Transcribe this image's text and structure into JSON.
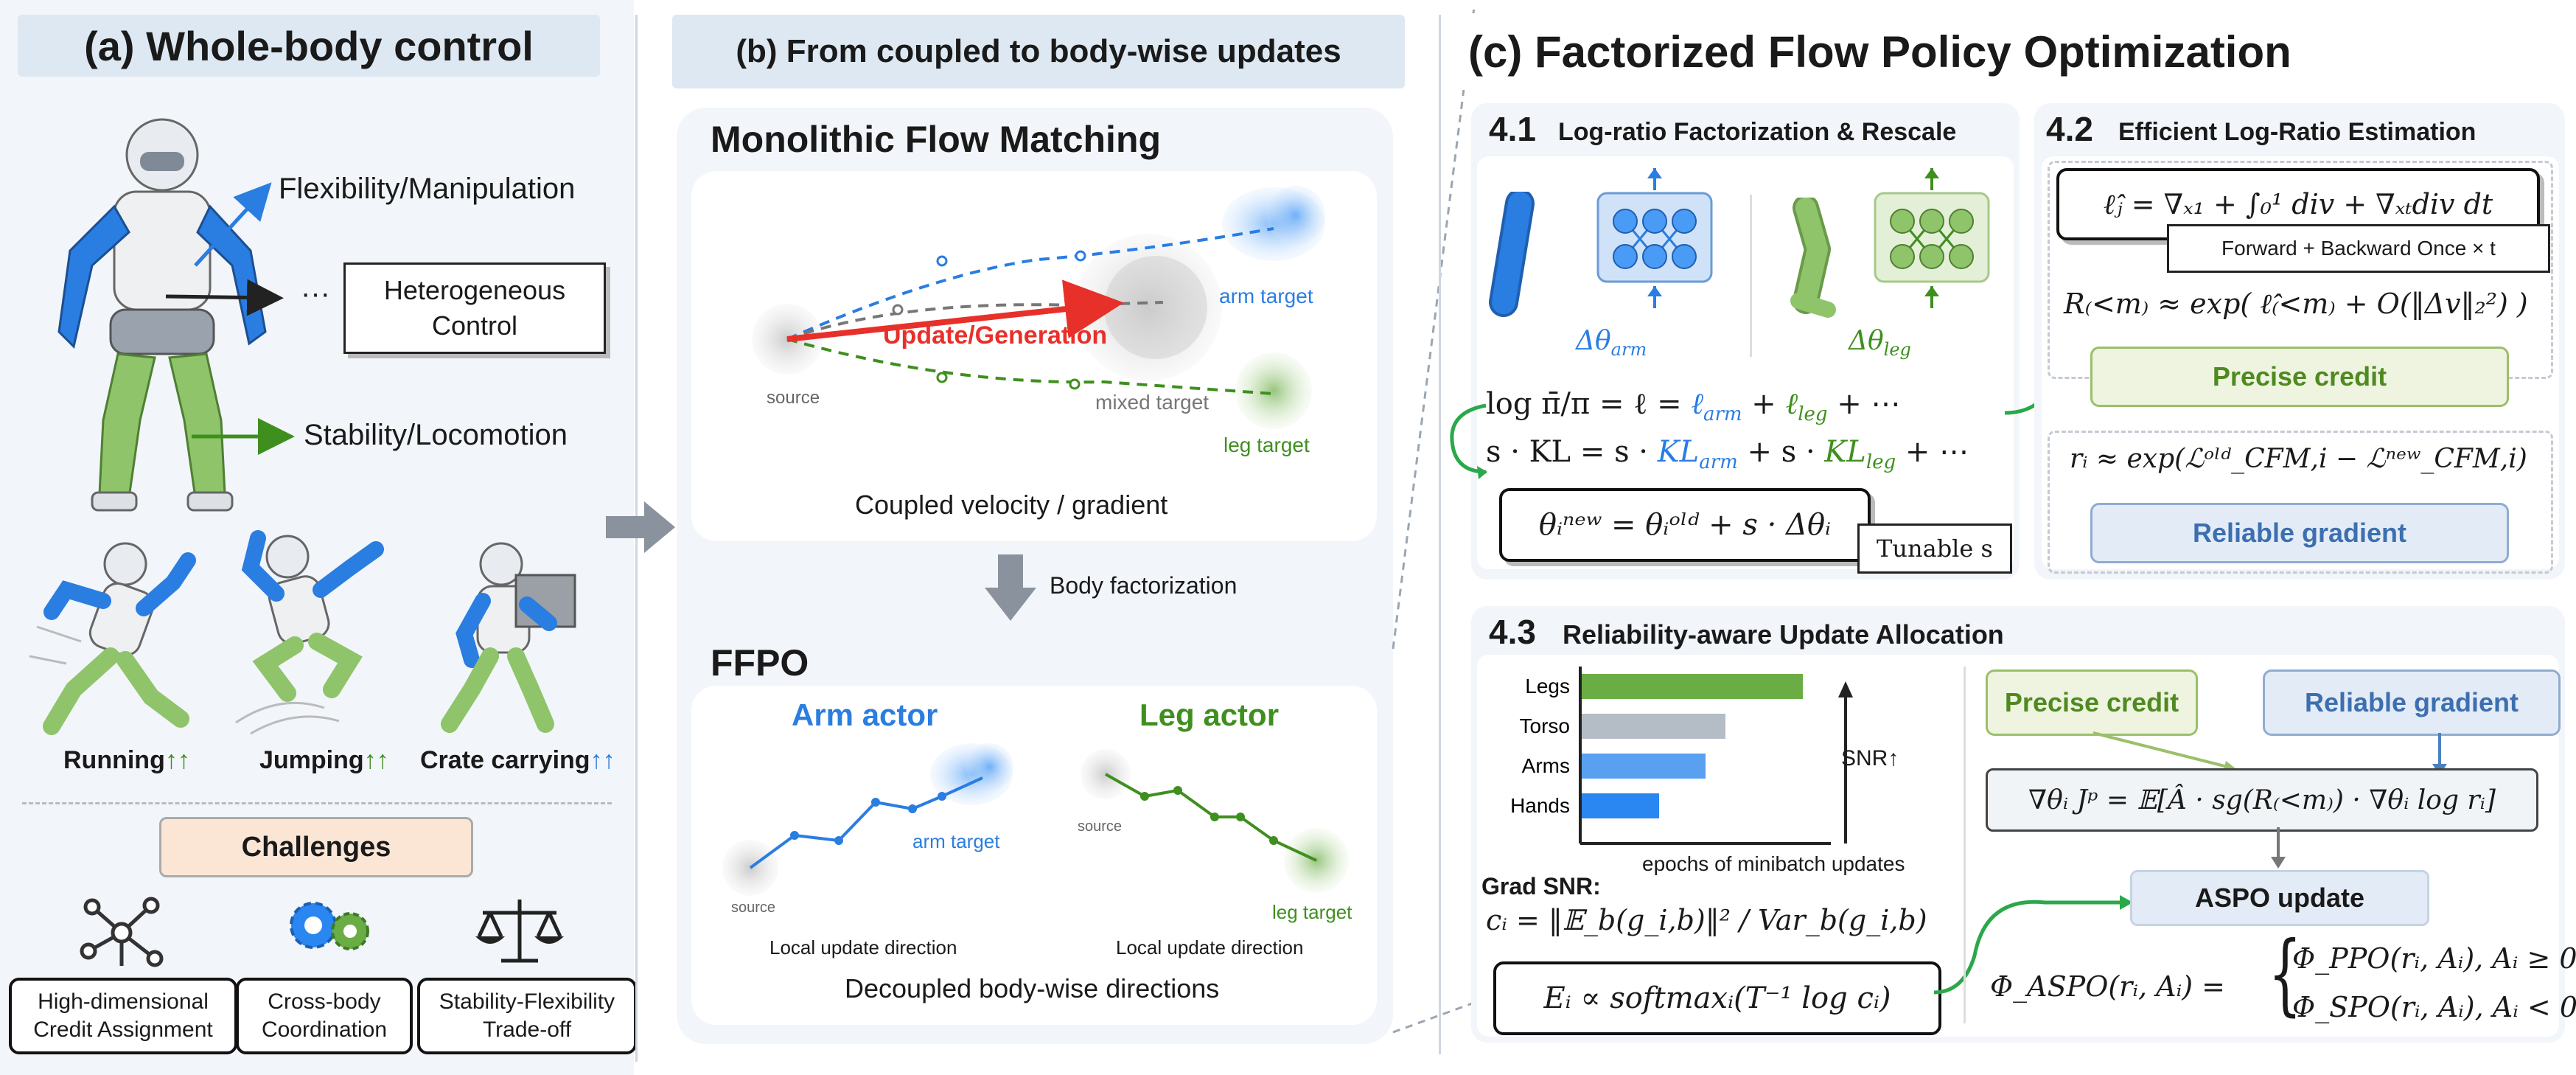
{
  "panel_a": {
    "title": "(a) Whole-body control",
    "labels": {
      "flex": "Flexibility/Manipulation",
      "ellipsis": "···",
      "hetero": "Heterogeneous Control",
      "stab": "Stability/Locomotion"
    },
    "actions": [
      {
        "label": "Running",
        "arrows": "↑↑"
      },
      {
        "label": "Jumping",
        "arrows": "↑↑"
      },
      {
        "label": "Crate carrying",
        "arrows": "↑↑"
      }
    ],
    "challenges_title": "Challenges",
    "challenges": [
      "High-dimensional Credit Assignment",
      "Cross-body Coordination",
      "Stability-Flexibility Trade-off"
    ]
  },
  "panel_b": {
    "title": "(b) From coupled to body-wise updates",
    "mono_title": "Monolithic Flow Matching",
    "mono": {
      "arm_target": "arm target",
      "update": "Update/Generation",
      "source": "source",
      "mixed": "mixed target",
      "leg_target": "leg target",
      "caption": "Coupled velocity / gradient"
    },
    "factorization": "Body factorization",
    "ffpo_title": "FFPO",
    "arm_actor": "Arm actor",
    "leg_actor": "Leg actor",
    "arm": {
      "target": "arm target",
      "source": "source",
      "caption": "Local update direction"
    },
    "leg": {
      "source": "source",
      "target": "leg target",
      "caption": "Local update direction"
    },
    "ffpo_caption": "Decoupled body-wise directions"
  },
  "panel_c": {
    "title": "(c) Factorized Flow Policy Optimization",
    "s41": {
      "num": "4.1",
      "title": "Log-ratio Factorization & Rescale",
      "d_arm": "Δθ",
      "d_arm_sub": "arm",
      "d_leg": "Δθ",
      "d_leg_sub": "leg",
      "eq1": [
        "log π̄/π = ℓ  =  ",
        "ℓ",
        "arm",
        "  +  ",
        "ℓ",
        "leg",
        "  + ⋯"
      ],
      "eq2": [
        "s · KL = s · ",
        "KL",
        "arm",
        " + s · ",
        "KL",
        "leg",
        " + ⋯"
      ],
      "update_eq": "θᵢⁿᵉʷ = θᵢᵒˡᵈ + s · Δθᵢ",
      "tunable": "Tunable s"
    },
    "s42": {
      "num": "4.2",
      "title": "Efficient Log-Ratio Estimation",
      "eq_top": "ℓ̂ⱼ = ∇ₓ₁ + ∫₀¹ div + ∇ₓₜdiv dt",
      "forward": "Forward + Backward Once × t",
      "eq_r": "R₍<m₎ ≈ exp( ℓ̂₍<m₎ + O(‖Δv‖₂²) )",
      "precise": "Precise credit",
      "eq_ri": "rᵢ ≈ exp(ℒᵒˡᵈ_CFM,i − ℒⁿᵉʷ_CFM,i)",
      "reliable": "Reliable gradient"
    },
    "s43": {
      "num": "4.3",
      "title": "Reliability-aware Update Allocation",
      "snr_label": "SNR↑",
      "xlabel": "epochs of minibatch updates",
      "grad_snr": "Grad SNR:",
      "eq_c": "cᵢ = ‖𝔼_b(g_i,b)‖² / Var_b(g_i,b)",
      "eq_e": "Eᵢ ∝ softmaxᵢ(T⁻¹ log cᵢ)",
      "precise": "Precise credit",
      "reliable": "Reliable gradient",
      "grad_eq": "∇θᵢ Jᵖ = 𝔼[Â · sg(R₍<m₎) · ∇θᵢ log rᵢ]",
      "aspo": "ASPO update",
      "phi_lhs": "Φ_ASPO(rᵢ, Aᵢ) =",
      "phi1": "Φ_PPO(rᵢ, Aᵢ), Aᵢ ≥ 0",
      "phi2": "Φ_SPO(rᵢ, Aᵢ), Aᵢ < 0"
    }
  },
  "chart_data": {
    "type": "bar",
    "categories": [
      "Legs",
      "Torso",
      "Arms",
      "Hands"
    ],
    "values": [
      1.0,
      0.65,
      0.56,
      0.35
    ],
    "colors": [
      "#6aad45",
      "#b4bcc6",
      "#5aa0f0",
      "#2a86f0"
    ],
    "xlabel": "epochs of minibatch updates",
    "ylabel": "SNR↑"
  },
  "colors": {
    "blue": "#2a7de1",
    "green": "#3f8f1f",
    "red": "#e8302a"
  }
}
